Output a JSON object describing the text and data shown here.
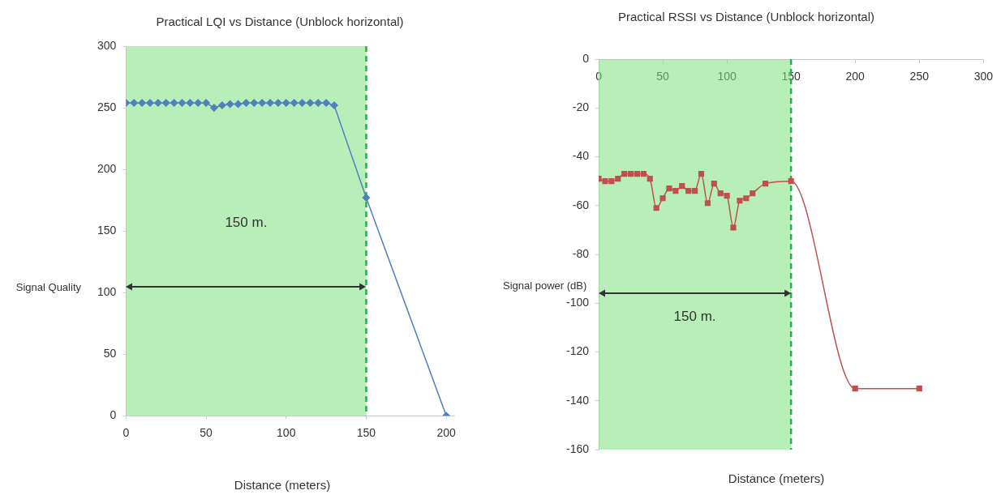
{
  "chart_data": [
    {
      "type": "line",
      "title": "Practical LQI vs Distance (Unblock horizontal)",
      "xlabel": "Distance (meters)",
      "ylabel": "Signal Quality",
      "x": [
        0,
        5,
        10,
        15,
        20,
        25,
        30,
        35,
        40,
        45,
        50,
        55,
        60,
        65,
        70,
        75,
        80,
        85,
        90,
        95,
        100,
        105,
        110,
        115,
        120,
        125,
        130,
        150,
        200
      ],
      "series": [
        {
          "color": "#4f81bd",
          "values": [
            254,
            254,
            254,
            254,
            254,
            254,
            254,
            254,
            254,
            254,
            254,
            250,
            252,
            253,
            253,
            254,
            254,
            254,
            254,
            254,
            254,
            254,
            254,
            254,
            254,
            254,
            252,
            177,
            0
          ]
        }
      ],
      "xlim": [
        0,
        205
      ],
      "xticks": [
        0,
        50,
        100,
        150,
        200
      ],
      "ylim": [
        0,
        300
      ],
      "yticks": [
        0,
        50,
        100,
        150,
        200,
        250,
        300
      ],
      "grid": false,
      "legend": false,
      "marker": "diamond",
      "bands": [
        {
          "axis": "x",
          "from": 0,
          "to": 150,
          "color": "#7ee07e"
        }
      ],
      "ref_lines": [
        {
          "axis": "x",
          "value": 150,
          "color": "#22b14c",
          "line_style": "dashed"
        }
      ],
      "annotations": [
        "150 m."
      ]
    },
    {
      "type": "line",
      "title": "Practical RSSI vs Distance (Unblock horizontal)",
      "xlabel": "Distance (meters)",
      "ylabel": "Signal power (dB)",
      "x": [
        0,
        5,
        10,
        15,
        20,
        25,
        30,
        35,
        40,
        45,
        50,
        55,
        60,
        65,
        70,
        75,
        80,
        85,
        90,
        95,
        100,
        105,
        110,
        115,
        120,
        130,
        150,
        200,
        250
      ],
      "series": [
        {
          "color": "#c0504d",
          "values": [
            -49,
            -50,
            -50,
            -49,
            -47,
            -47,
            -47,
            -47,
            -49,
            -61,
            -57,
            -53,
            -54,
            -52,
            -54,
            -54,
            -47,
            -59,
            -51,
            -55,
            -56,
            -69,
            -58,
            -57,
            -55,
            -51,
            -50,
            -135,
            -135
          ]
        }
      ],
      "xlim": [
        0,
        300
      ],
      "xticks": [
        0,
        50,
        100,
        150,
        200,
        250,
        300
      ],
      "ylim": [
        -160,
        0
      ],
      "yticks": [
        -160,
        -140,
        -120,
        -100,
        -80,
        -60,
        -40,
        -20,
        0
      ],
      "grid": false,
      "legend": false,
      "marker": "square",
      "bands": [
        {
          "axis": "x",
          "from": 0,
          "to": 150,
          "color": "#7ee07e"
        }
      ],
      "ref_lines": [
        {
          "axis": "x",
          "value": 150,
          "color": "#22b14c",
          "line_style": "dashed"
        }
      ],
      "annotations": [
        "150 m."
      ]
    }
  ]
}
